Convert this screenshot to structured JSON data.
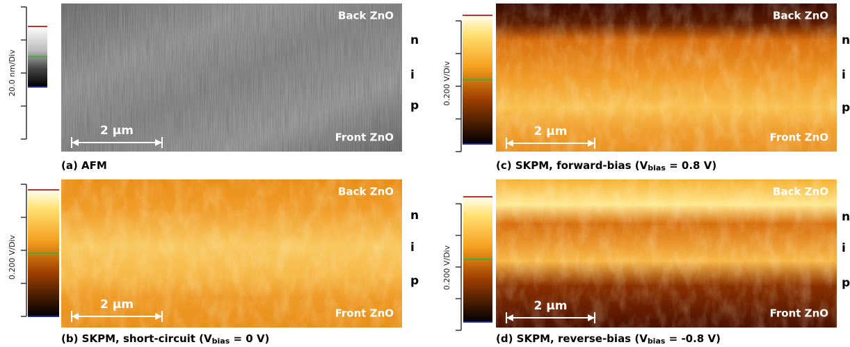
{
  "panels": [
    {
      "caption": {
        "text": "(a) AFM"
      },
      "scale_label": "20.0 nm/Div",
      "top_label": "Back ZnO",
      "bottom_label": "Front ZnO",
      "layers": [
        "n",
        "i",
        "p"
      ],
      "scale_bar": "2 µm"
    },
    {
      "caption": {
        "text": "(b) SKPM, short-circuit (V",
        "sub": "bias",
        "tail": " = 0 V)"
      },
      "scale_label": "0.200 V/Div",
      "top_label": "Back ZnO",
      "bottom_label": "Front ZnO",
      "layers": [
        "n",
        "i",
        "p"
      ],
      "scale_bar": "2 µm"
    },
    {
      "caption": {
        "text": "(c) SKPM, forward-bias (V",
        "sub": "bias",
        "tail": " = 0.8 V)"
      },
      "scale_label": "0.200 V/Div",
      "top_label": "Back ZnO",
      "bottom_label": "Front ZnO",
      "layers": [
        "n",
        "i",
        "p"
      ],
      "scale_bar": "2 µm"
    },
    {
      "caption": {
        "text": "(d) SKPM, reverse-bias (V",
        "sub": "bias",
        "tail": " = -0.8 V)"
      },
      "scale_label": "0.200 V/Div",
      "top_label": "Back ZnO",
      "bottom_label": "Front ZnO",
      "layers": [
        "n",
        "i",
        "p"
      ],
      "scale_bar": "2 µm"
    }
  ]
}
